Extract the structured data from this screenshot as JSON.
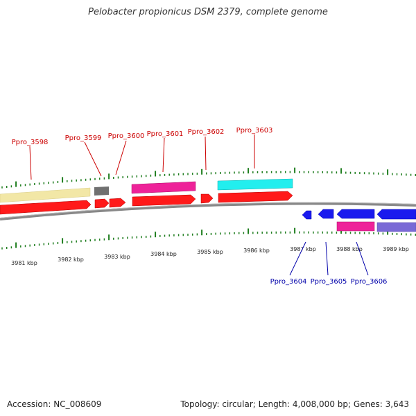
{
  "title": "Pelobacter propionicus DSM 2379, complete genome",
  "footer": {
    "accession": "Accession: NC_008609",
    "summary": "Topology: circular; Length: 4,008,000 bp; Genes: 3,643"
  },
  "colors": {
    "tick": "#1e7d1e",
    "backbone": "#888888",
    "red": "#ff1a1a",
    "khaki": "#f2e7a6",
    "gray": "#707070",
    "magenta": "#ee2299",
    "cyan": "#22eeee",
    "blue": "#1a1aee",
    "slate": "#7a6ad6",
    "label_top": "#cc0000",
    "label_bottom": "#0000aa"
  },
  "kbp_ticks": [
    "3981 kbp",
    "3982 kbp",
    "3983 kbp",
    "3984 kbp",
    "3985 kbp",
    "3986 kbp",
    "3987 kbp",
    "3988 kbp",
    "3989 kbp"
  ],
  "gene_labels_top": [
    "Ppro_3598",
    "Ppro_3599",
    "Ppro_3600",
    "Ppro_3601",
    "Ppro_3602",
    "Ppro_3603"
  ],
  "gene_labels_bottom": [
    "Ppro_3604",
    "Ppro_3605",
    "Ppro_3606"
  ]
}
